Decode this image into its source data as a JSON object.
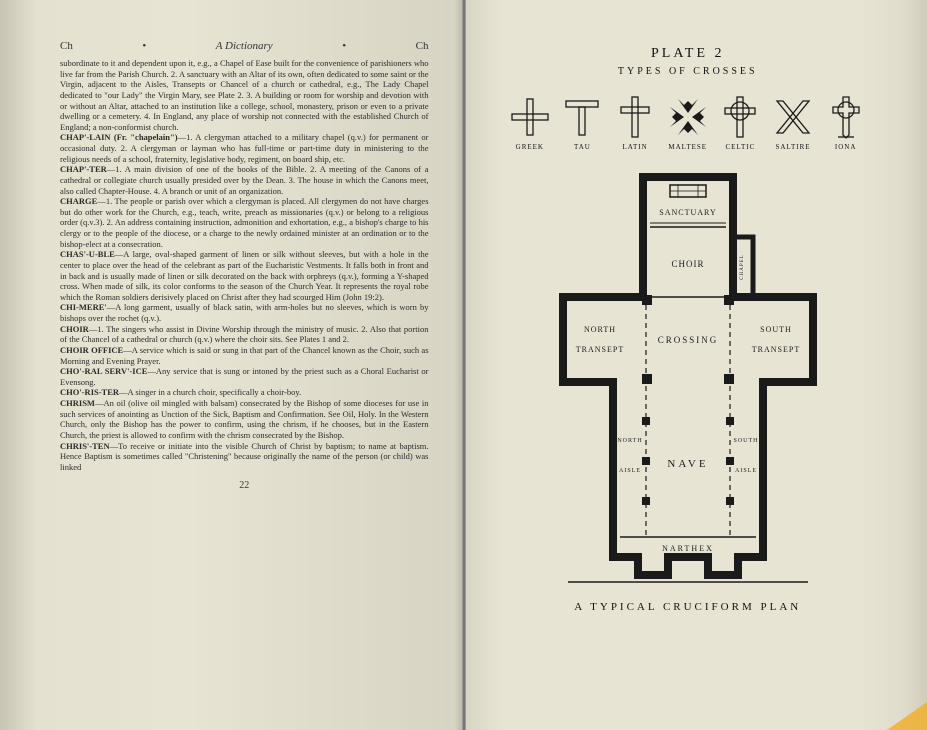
{
  "left": {
    "header_left": "Ch",
    "header_center": "A Dictionary",
    "header_right": "Ch",
    "page_number": "22",
    "body": "subordinate to it and dependent upon it, e.g., a Chapel of Ease built for the convenience of parishioners who live far from the Parish Church. 2. A sanctuary with an Altar of its own, often dedicated to some saint or the Virgin, adjacent to the Aisles, Transepts or Chancel of a church or cathedral, e.g., The Lady Chapel dedicated to \"our Lady\" the Virgin Mary, see Plate 2. 3. A building or room for worship and devotion with or without an Altar, attached to an institution like a college, school, monastery, prison or even to a private dwelling or a cemetery. 4. In England, any place of worship not connected with the established Church of England; a non-conformist church.",
    "entries": [
      {
        "term": "CHAP'-LAIN (Fr. \"chapelain\")",
        "def": "—1. A clergyman attached to a military chapel (q.v.) for permanent or occasional duty. 2. A clergyman or layman who has full-time or part-time duty in ministering to the religious needs of a school, fraternity, legislative body, regiment, on board ship, etc."
      },
      {
        "term": "CHAP'-TER",
        "def": "—1. A main division of one of the books of the Bible. 2. A meeting of the Canons of a cathedral or collegiate church usually presided over by the Dean. 3. The house in which the Canons meet, also called Chapter-House. 4. A branch or unit of an organization."
      },
      {
        "term": "CHARGE",
        "def": "—1. The people or parish over which a clergyman is placed. All clergymen do not have charges but do other work for the Church, e.g., teach, write, preach as missionaries (q.v.) or belong to a religious order (q.v.3). 2. An address containing instruction, admonition and exhortation, e.g., a bishop's charge to his clergy or to the people of the diocese, or a charge to the newly ordained minister at an ordination or to the bishop-elect at a consecration."
      },
      {
        "term": "CHAS'-U-BLE",
        "def": "—A large, oval-shaped garment of linen or silk without sleeves, but with a hole in the center to place over the head of the celebrant as part of the Eucharistic Vestments. It falls both in front and in back and is usually made of linen or silk decorated on the back with orphreys (q.v.), forming a Y-shaped cross. When made of silk, its color conforms to the season of the Church Year. It represents the royal robe which the Roman soldiers derisively placed on Christ after they had scourged Him (John 19:2)."
      },
      {
        "term": "CHI-MERE'",
        "def": "—A long garment, usually of black satin, with arm-holes but no sleeves, which is worn by bishops over the rochet (q.v.)."
      },
      {
        "term": "CHOIR",
        "def": "—1. The singers who assist in Divine Worship through the ministry of music. 2. Also that portion of the Chancel of a cathedral or church (q.v.) where the choir sits. See Plates 1 and 2."
      },
      {
        "term": "CHOIR OFFICE",
        "def": "—A service which is said or sung in that part of the Chancel known as the Choir, such as Morning and Evening Prayer."
      },
      {
        "term": "CHO'-RAL SERV'-ICE",
        "def": "—Any service that is sung or intoned by the priest such as a Choral Eucharist or Evensong."
      },
      {
        "term": "CHO'-RIS-TER",
        "def": "—A singer in a church choir, specifically a choir-boy."
      },
      {
        "term": "CHRISM",
        "def": "—An oil (olive oil mingled with balsam) consecrated by the Bishop of some dioceses for use in such services of anointing as Unction of the Sick, Baptism and Confirmation. See Oil, Holy. In the Western Church, only the Bishop has the power to confirm, using the chrism, if he chooses, but in the Eastern Church, the priest is allowed to confirm with the chrism consecrated by the Bishop."
      },
      {
        "term": "CHRIS'-TEN",
        "def": "—To receive or initiate into the visible Church of Christ by baptism; to name at baptism. Hence Baptism is sometimes called \"Christening\" because originally the name of the person (or child) was linked"
      }
    ]
  },
  "right": {
    "plate_label": "PLATE 2",
    "plate_subtitle": "TYPES OF CROSSES",
    "crosses": [
      {
        "name": "GREEK"
      },
      {
        "name": "TAU"
      },
      {
        "name": "LATIN"
      },
      {
        "name": "MALTESE"
      },
      {
        "name": "CELTIC"
      },
      {
        "name": "SALTIRE"
      },
      {
        "name": "IONA"
      }
    ],
    "plan": {
      "labels": {
        "sanctuary": "SANCTUARY",
        "choir": "CHOIR",
        "chapel": "CHAPEL",
        "north_transept_1": "NORTH",
        "north_transept_2": "TRANSEPT",
        "south_transept_1": "SOUTH",
        "south_transept_2": "TRANSEPT",
        "crossing": "CROSSING",
        "nave": "NAVE",
        "north_aisle_1": "NORTH",
        "north_aisle_2": "AISLE",
        "south_aisle_1": "SOUTH",
        "south_aisle_2": "AISLE",
        "narthex": "NARTHEX"
      }
    },
    "caption": "A  TYPICAL  CRUCIFORM  PLAN",
    "colors": {
      "ink": "#1a1a1a",
      "paper": "#e8e4d4"
    }
  }
}
